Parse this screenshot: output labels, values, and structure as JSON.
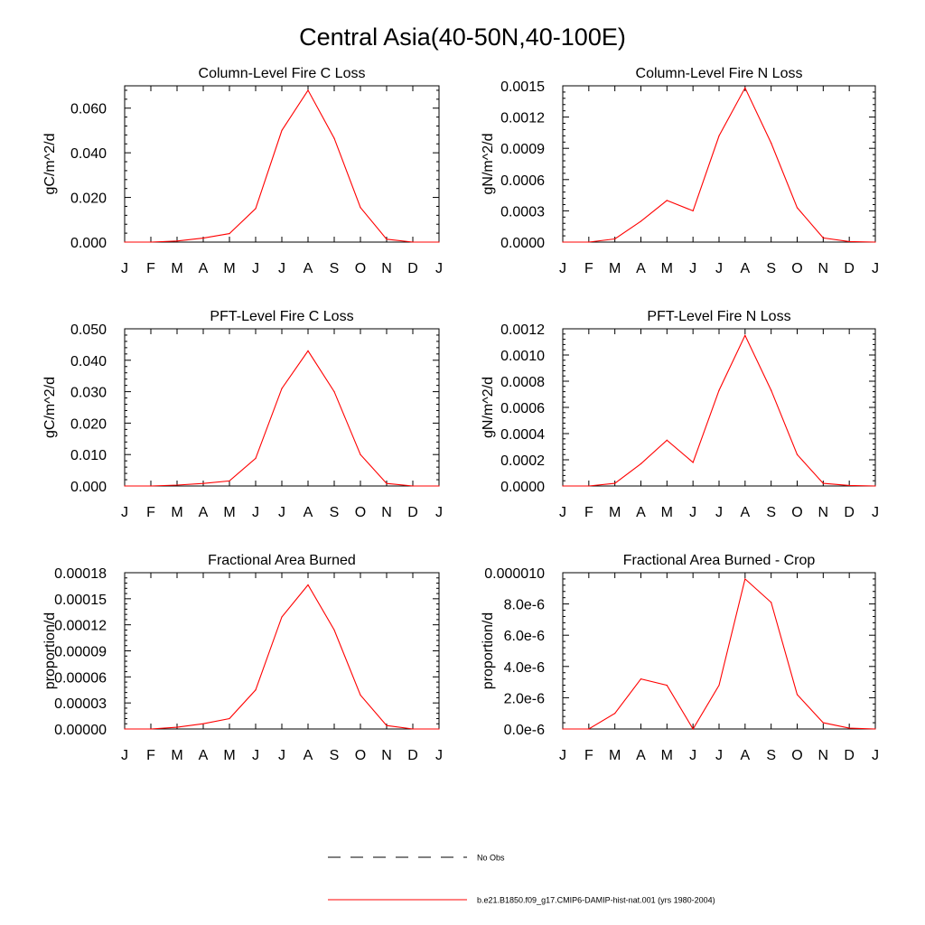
{
  "figure": {
    "title": "Central Asia(40-50N,40-100E)",
    "line_color": "#ff0000",
    "legend": [
      {
        "label": "No Obs",
        "style": "dashed",
        "color": "#000000"
      },
      {
        "label": "b.e21.B1850.f09_g17.CMIP6-DAMIP-hist-nat.001 (yrs 1980-2004)",
        "style": "solid",
        "color": "#ff0000"
      }
    ]
  },
  "chart_data": [
    {
      "type": "line",
      "title": "Column-Level Fire C Loss",
      "ylabel": "gC/m^2/d",
      "x": [
        "J",
        "F",
        "M",
        "A",
        "M",
        "J",
        "J",
        "A",
        "S",
        "O",
        "N",
        "D",
        "J"
      ],
      "ylim": [
        0,
        0.07
      ],
      "yticks": [
        "0.000",
        "0.020",
        "0.040",
        "0.060"
      ],
      "yticks_values": [
        0,
        0.02,
        0.04,
        0.06
      ],
      "series": [
        {
          "values": [
            0.0,
            0.0,
            0.0005,
            0.0018,
            0.0038,
            0.015,
            0.05,
            0.068,
            0.0465,
            0.0155,
            0.0013,
            0.0,
            0.0
          ]
        }
      ]
    },
    {
      "type": "line",
      "title": "Column-Level Fire N Loss",
      "ylabel": "gN/m^2/d",
      "x": [
        "J",
        "F",
        "M",
        "A",
        "M",
        "J",
        "J",
        "A",
        "S",
        "O",
        "N",
        "D",
        "J"
      ],
      "ylim": [
        0,
        0.0015
      ],
      "yticks": [
        "0.0000",
        "0.0003",
        "0.0006",
        "0.0009",
        "0.0012",
        "0.0015"
      ],
      "yticks_values": [
        0,
        0.0003,
        0.0006,
        0.0009,
        0.0012,
        0.0015
      ],
      "series": [
        {
          "values": [
            0.0,
            0.0,
            3e-05,
            0.0002,
            0.0004,
            0.0003,
            0.00102,
            0.00148,
            0.00095,
            0.00033,
            4e-05,
            5e-06,
            0.0
          ]
        }
      ]
    },
    {
      "type": "line",
      "title": "PFT-Level Fire C Loss",
      "ylabel": "gC/m^2/d",
      "x": [
        "J",
        "F",
        "M",
        "A",
        "M",
        "J",
        "J",
        "A",
        "S",
        "O",
        "N",
        "D",
        "J"
      ],
      "ylim": [
        0,
        0.05
      ],
      "yticks": [
        "0.000",
        "0.010",
        "0.020",
        "0.030",
        "0.040",
        "0.050"
      ],
      "yticks_values": [
        0,
        0.01,
        0.02,
        0.03,
        0.04,
        0.05
      ],
      "series": [
        {
          "values": [
            0.0,
            0.0,
            0.0003,
            0.0008,
            0.0016,
            0.0088,
            0.031,
            0.043,
            0.03,
            0.01,
            0.0008,
            0.0,
            0.0
          ]
        }
      ]
    },
    {
      "type": "line",
      "title": "PFT-Level Fire N Loss",
      "ylabel": "gN/m^2/d",
      "x": [
        "J",
        "F",
        "M",
        "A",
        "M",
        "J",
        "J",
        "A",
        "S",
        "O",
        "N",
        "D",
        "J"
      ],
      "ylim": [
        0,
        0.0012
      ],
      "yticks": [
        "0.0000",
        "0.0002",
        "0.0004",
        "0.0006",
        "0.0008",
        "0.0010",
        "0.0012"
      ],
      "yticks_values": [
        0,
        0.0002,
        0.0004,
        0.0006,
        0.0008,
        0.001,
        0.0012
      ],
      "series": [
        {
          "values": [
            0.0,
            0.0,
            2e-05,
            0.00017,
            0.00035,
            0.00018,
            0.00073,
            0.00115,
            0.00073,
            0.00024,
            2e-05,
            4e-06,
            0.0
          ]
        }
      ]
    },
    {
      "type": "line",
      "title": "Fractional Area Burned",
      "ylabel": "proportion/d",
      "x": [
        "J",
        "F",
        "M",
        "A",
        "M",
        "J",
        "J",
        "A",
        "S",
        "O",
        "N",
        "D",
        "J"
      ],
      "ylim": [
        0,
        0.00018
      ],
      "yticks": [
        "0.00000",
        "0.00003",
        "0.00006",
        "0.00009",
        "0.00012",
        "0.00015",
        "0.00018"
      ],
      "yticks_values": [
        0,
        3e-05,
        6e-05,
        9e-05,
        0.00012,
        0.00015,
        0.00018
      ],
      "series": [
        {
          "values": [
            0.0,
            0.0,
            2e-06,
            6e-06,
            1.2e-05,
            4.5e-05,
            0.000129,
            0.000166,
            0.000114,
            3.9e-05,
            4e-06,
            0.0,
            0.0
          ]
        }
      ]
    },
    {
      "type": "line",
      "title": "Fractional Area Burned - Crop",
      "ylabel": "proportion/d",
      "x": [
        "J",
        "F",
        "M",
        "A",
        "M",
        "J",
        "J",
        "A",
        "S",
        "O",
        "N",
        "D",
        "J"
      ],
      "ylim": [
        0,
        1e-05
      ],
      "yticks": [
        "0.0e-6",
        "2.0e-6",
        "4.0e-6",
        "6.0e-6",
        "8.0e-6",
        "0.000010"
      ],
      "yticks_values": [
        0,
        2e-06,
        4e-06,
        6e-06,
        8e-06,
        1e-05
      ],
      "series": [
        {
          "values": [
            0.0,
            0.0,
            1e-06,
            3.2e-06,
            2.8e-06,
            0.0,
            2.8e-06,
            9.6e-06,
            8.1e-06,
            2.2e-06,
            4e-07,
            5e-08,
            0.0
          ]
        }
      ]
    }
  ]
}
